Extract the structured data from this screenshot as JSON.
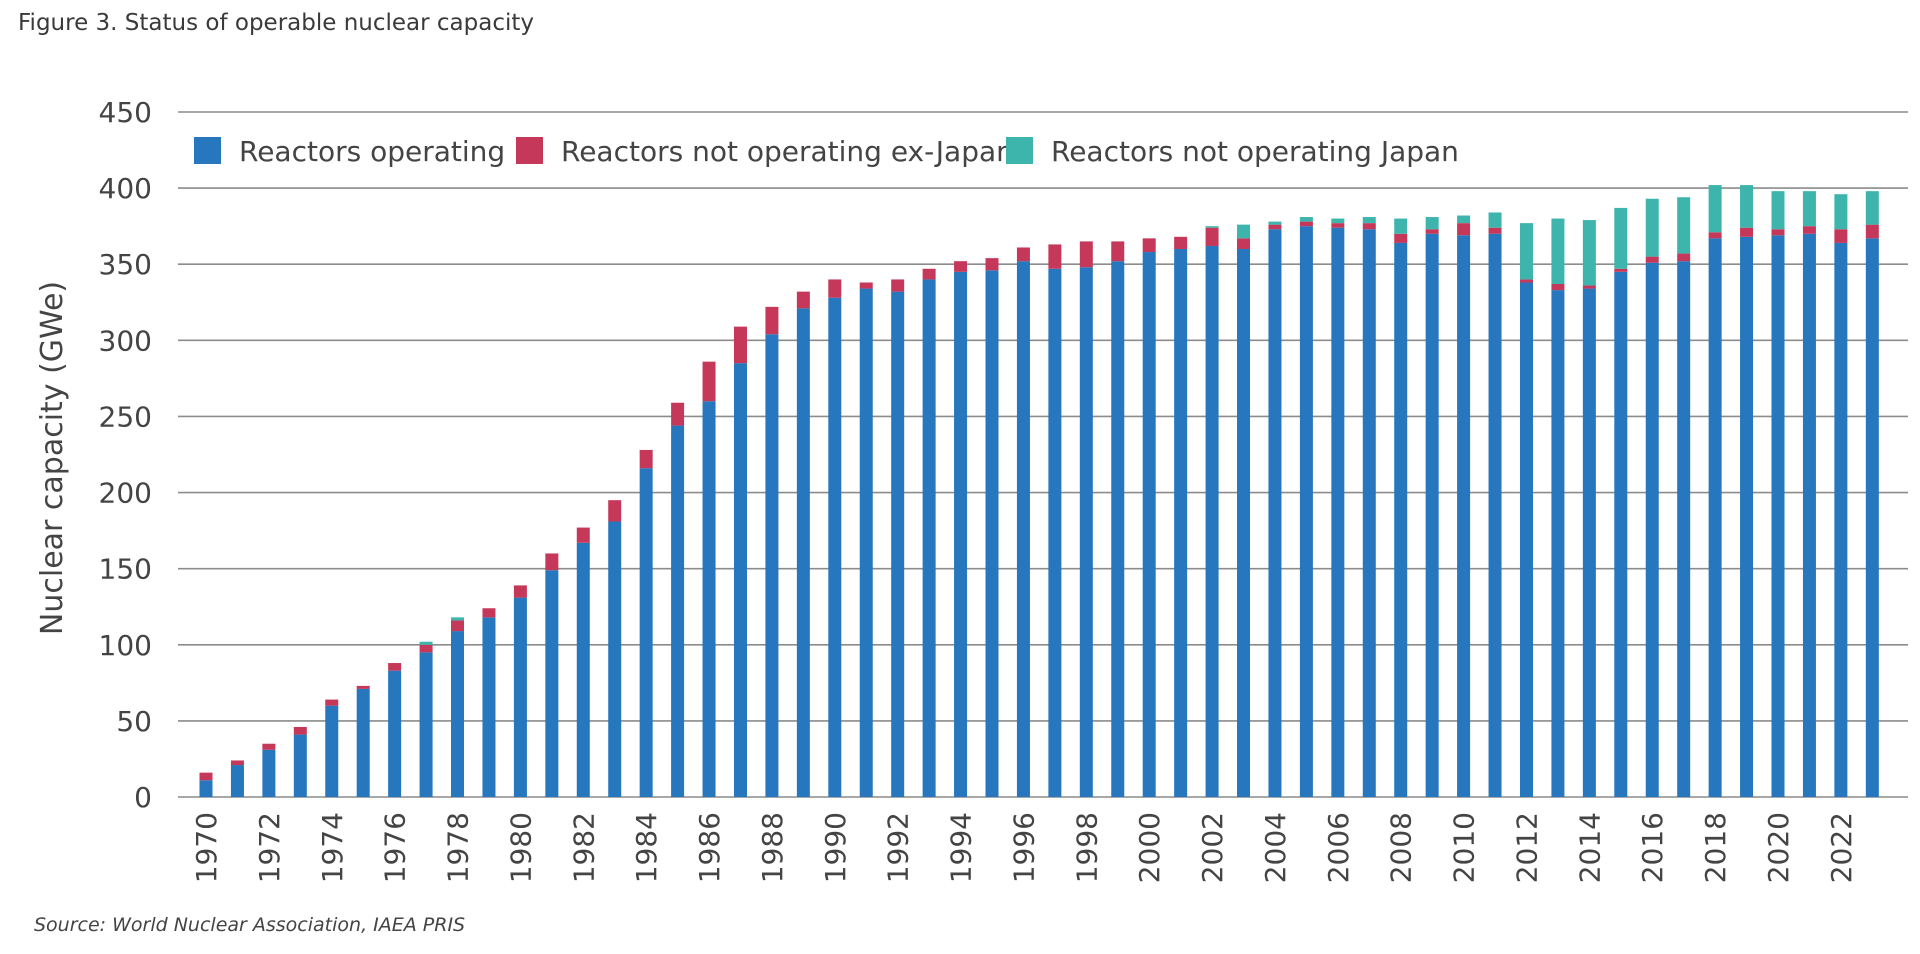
{
  "figure_title": "Figure 3. Status of operable nuclear capacity",
  "source": "Source: World Nuclear Association, IAEA PRIS",
  "colors": {
    "operating": "#2677bd",
    "not_operating_ex_japan": "#c5385a",
    "not_operating_japan": "#3db5ad",
    "grid": "#8c8c8c"
  },
  "chart_data": {
    "type": "bar",
    "stacked": true,
    "ylabel": "Nuclear capacity (GWe)",
    "xlabel": "",
    "ylim": [
      0,
      450
    ],
    "yticks": [
      0,
      50,
      100,
      150,
      200,
      250,
      300,
      350,
      400,
      450
    ],
    "grid": true,
    "legend_position": "top-left",
    "categories": [
      "1970",
      "1971",
      "1972",
      "1973",
      "1974",
      "1975",
      "1976",
      "1977",
      "1978",
      "1979",
      "1980",
      "1981",
      "1982",
      "1983",
      "1984",
      "1985",
      "1986",
      "1987",
      "1988",
      "1989",
      "1990",
      "1991",
      "1992",
      "1993",
      "1994",
      "1995",
      "1996",
      "1997",
      "1998",
      "1999",
      "2000",
      "2001",
      "2002",
      "2003",
      "2004",
      "2005",
      "2006",
      "2007",
      "2008",
      "2009",
      "2010",
      "2011",
      "2012",
      "2013",
      "2014",
      "2015",
      "2016",
      "2017",
      "2018",
      "2019",
      "2020",
      "2021",
      "2022",
      "2023"
    ],
    "xtick_labels": [
      "1970",
      "1972",
      "1974",
      "1976",
      "1978",
      "1980",
      "1982",
      "1984",
      "1986",
      "1988",
      "1990",
      "1992",
      "1994",
      "1996",
      "1998",
      "2000",
      "2002",
      "2004",
      "2006",
      "2008",
      "2010",
      "2012",
      "2014",
      "2016",
      "2018",
      "2020",
      "2022"
    ],
    "series": [
      {
        "name": "Reactors operating",
        "color_key": "operating",
        "values": [
          11,
          21,
          31,
          41,
          60,
          71,
          83,
          95,
          109,
          118,
          131,
          149,
          167,
          181,
          216,
          244,
          260,
          285,
          304,
          321,
          328,
          334,
          332,
          340,
          345,
          346,
          352,
          347,
          348,
          352,
          358,
          360,
          362,
          360,
          373,
          375,
          374,
          373,
          364,
          370,
          369,
          370,
          338,
          333,
          334,
          345,
          351,
          352,
          367,
          368,
          369,
          370,
          364,
          367
        ]
      },
      {
        "name": "Reactors not operating ex-Japan",
        "color_key": "not_operating_ex_japan",
        "values": [
          5,
          3,
          4,
          5,
          4,
          2,
          5,
          5,
          7,
          6,
          8,
          11,
          10,
          14,
          12,
          15,
          26,
          24,
          18,
          11,
          12,
          4,
          8,
          7,
          7,
          8,
          9,
          16,
          17,
          13,
          9,
          8,
          12,
          7,
          3,
          3,
          3,
          4,
          6,
          3,
          8,
          4,
          2,
          4,
          2,
          2,
          4,
          5,
          4,
          6,
          4,
          5,
          9,
          9
        ]
      },
      {
        "name": "Reactors not operating Japan",
        "color_key": "not_operating_japan",
        "values": [
          0,
          0,
          0,
          0,
          0,
          0,
          0,
          2,
          2,
          0,
          0,
          0,
          0,
          0,
          0,
          0,
          0,
          0,
          0,
          0,
          0,
          0,
          0,
          0,
          0,
          0,
          0,
          0,
          0,
          0,
          0,
          0,
          1,
          9,
          2,
          3,
          3,
          4,
          10,
          8,
          5,
          10,
          37,
          43,
          43,
          40,
          38,
          37,
          31,
          28,
          25,
          23,
          23,
          22
        ]
      }
    ]
  }
}
